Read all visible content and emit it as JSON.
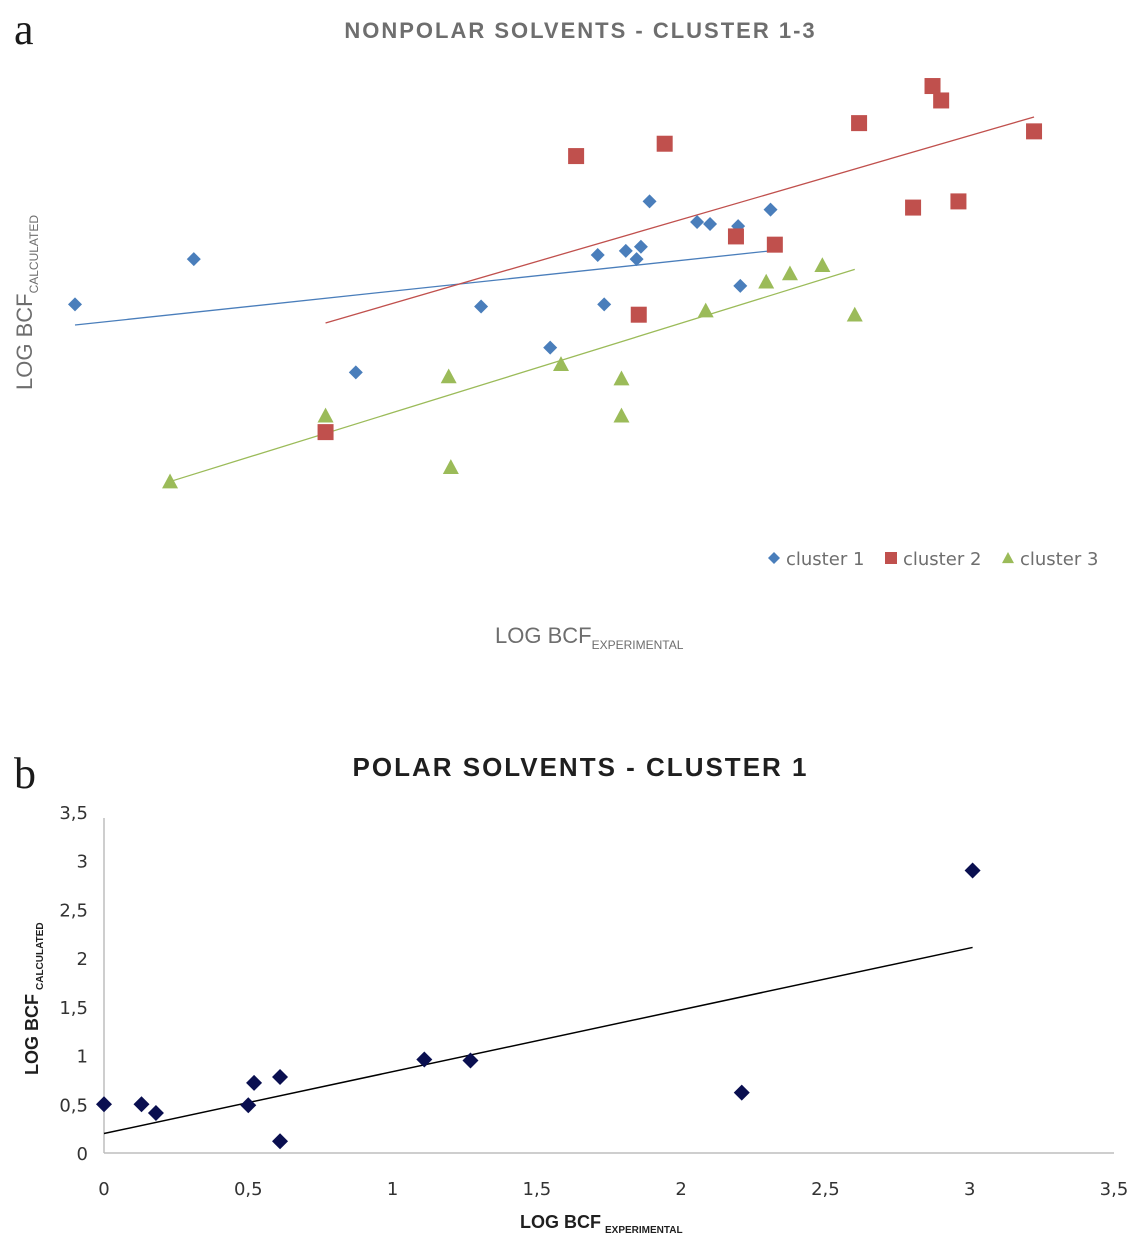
{
  "chart_data": [
    {
      "panel": "a",
      "type": "scatter",
      "title": "NONPOLAR SOLVENTS - CLUSTER 1-3",
      "xlabel": {
        "main": "LOG BCF",
        "sub": "EXPERIMENTAL"
      },
      "ylabel": {
        "main": "LOG BCF",
        "sub": "CALCULATED"
      },
      "legend_position": "bottom-right",
      "grid": false,
      "series": [
        {
          "name": "cluster 1",
          "marker": "diamond",
          "color": "#4a7ebb",
          "points": [
            [
              0.0,
              2.6
            ],
            [
              0.55,
              2.82
            ],
            [
              1.3,
              2.27
            ],
            [
              1.88,
              2.59
            ],
            [
              2.2,
              2.39
            ],
            [
              2.42,
              2.84
            ],
            [
              2.45,
              2.6
            ],
            [
              2.55,
              2.86
            ],
            [
              2.6,
              2.82
            ],
            [
              2.62,
              2.88
            ],
            [
              2.66,
              3.1
            ],
            [
              2.88,
              3.0
            ],
            [
              2.94,
              2.99
            ],
            [
              3.08,
              2.69
            ],
            [
              3.07,
              2.98
            ],
            [
              3.22,
              3.06
            ]
          ],
          "trend": [
            [
              0.0,
              2.5
            ],
            [
              3.22,
              2.86
            ]
          ]
        },
        {
          "name": "cluster 2",
          "marker": "square",
          "color": "#c0504d",
          "points": [
            [
              1.16,
              1.98
            ],
            [
              2.32,
              3.32
            ],
            [
              2.73,
              3.38
            ],
            [
              3.63,
              3.48
            ],
            [
              3.97,
              3.66
            ],
            [
              3.06,
              2.93
            ],
            [
              3.24,
              2.89
            ],
            [
              3.88,
              3.07
            ],
            [
              4.01,
              3.59
            ],
            [
              4.09,
              3.1
            ],
            [
              4.44,
              3.44
            ],
            [
              2.61,
              2.55
            ]
          ],
          "trend": [
            [
              1.16,
              2.51
            ],
            [
              4.44,
              3.51
            ]
          ]
        },
        {
          "name": "cluster 3",
          "marker": "triangle",
          "color": "#9bbb59",
          "points": [
            [
              0.44,
              1.74
            ],
            [
              1.16,
              2.06
            ],
            [
              1.73,
              2.25
            ],
            [
              1.74,
              1.81
            ],
            [
              2.25,
              2.31
            ],
            [
              2.53,
              2.24
            ],
            [
              2.53,
              2.06
            ],
            [
              2.92,
              2.57
            ],
            [
              3.2,
              2.71
            ],
            [
              3.31,
              2.75
            ],
            [
              3.46,
              2.79
            ],
            [
              3.61,
              2.55
            ]
          ],
          "trend": [
            [
              0.44,
              1.74
            ],
            [
              3.61,
              2.77
            ]
          ]
        }
      ]
    },
    {
      "panel": "b",
      "type": "scatter",
      "title": "POLAR SOLVENTS - CLUSTER 1",
      "xlabel": {
        "main": "LOG BCF",
        "sub": "EXPERIMENTAL"
      },
      "ylabel": {
        "main": "LOG BCF",
        "sub": "CALCULATED"
      },
      "xlim": [
        0,
        3.5
      ],
      "ylim": [
        0,
        3.5
      ],
      "xticks": [
        "0",
        "0,5",
        "1",
        "1,5",
        "2",
        "2,5",
        "3",
        "3,5"
      ],
      "yticks": [
        "0",
        "0,5",
        "1",
        "1,5",
        "2",
        "2,5",
        "3",
        "3,5"
      ],
      "grid": false,
      "series": [
        {
          "marker": "diamond",
          "color": "#0a0f50",
          "points": [
            [
              0.0,
              0.5
            ],
            [
              0.13,
              0.5
            ],
            [
              0.18,
              0.41
            ],
            [
              0.5,
              0.49
            ],
            [
              0.52,
              0.72
            ],
            [
              0.61,
              0.78
            ],
            [
              0.61,
              0.12
            ],
            [
              1.11,
              0.96
            ],
            [
              1.27,
              0.95
            ],
            [
              2.21,
              0.62
            ],
            [
              3.01,
              2.9
            ]
          ],
          "trend": [
            [
              0.0,
              0.2
            ],
            [
              3.01,
              2.11
            ]
          ]
        }
      ]
    }
  ]
}
